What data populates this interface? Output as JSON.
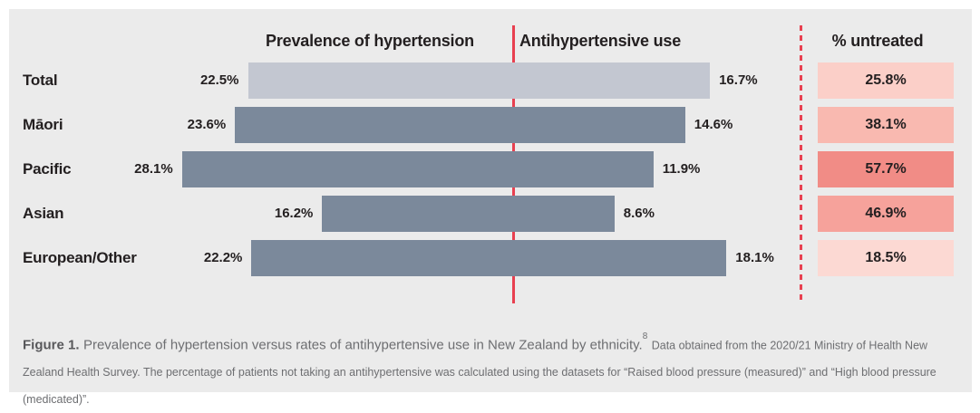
{
  "headers": {
    "prevalence": "Prevalence of hypertension",
    "use": "Antihypertensive use",
    "untreated": "% untreated"
  },
  "chart_data": {
    "type": "bar",
    "subtype": "diverging_butterfly",
    "orientation": "horizontal",
    "categories": [
      "Total",
      "Māori",
      "Pacific",
      "Asian",
      "European/Other"
    ],
    "series": [
      {
        "name": "Prevalence of hypertension",
        "side": "left",
        "values": [
          22.5,
          23.6,
          28.1,
          16.2,
          22.2
        ]
      },
      {
        "name": "Antihypertensive use",
        "side": "right",
        "values": [
          16.7,
          14.6,
          11.9,
          8.6,
          18.1
        ]
      },
      {
        "name": "% untreated",
        "display": "labeled_boxes",
        "values": [
          25.8,
          38.1,
          57.7,
          46.9,
          18.5
        ]
      }
    ],
    "value_suffix": "%",
    "center_axis": "solid red vertical line between the two bar series",
    "untreated_divider": "dashed red vertical line before % untreated column",
    "grid": false,
    "legend": "none"
  },
  "colors": {
    "panel_background": "#ebebeb",
    "bar_first_row": "#c3c7d1",
    "bar_default": "#7b899b",
    "center_line": "#e84050",
    "dashed_line": "#e84050",
    "untreated_boxes": [
      "#fbcfc8",
      "#f9b9b0",
      "#f18c86",
      "#f6a29b",
      "#fcd9d3"
    ]
  },
  "caption": {
    "figure_label": "Figure 1.",
    "main": "Prevalence of hypertension versus rates of antihypertensive use in New Zealand by ethnicity.",
    "reference": "8",
    "detail": "Data obtained from the 2020/21 Ministry of Health New Zealand Health Survey. The percentage of patients not taking an antihypertensive was calculated using the datasets for “Raised blood pressure (measured)” and “High blood pressure (medicated)”."
  }
}
